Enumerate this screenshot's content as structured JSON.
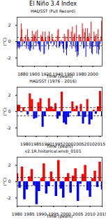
{
  "title": "El Niño 3.4 Index",
  "chart_data": [
    {
      "type": "area",
      "title": "HADSST (Full Record)",
      "x_label": "Time (years)",
      "y_label": "(°C)",
      "x": [
        1870,
        1871,
        1872,
        1873,
        1874,
        1875,
        1876,
        1877,
        1878,
        1879,
        1880,
        1881,
        1882,
        1883,
        1884,
        1885,
        1886,
        1887,
        1888,
        1889,
        1890,
        1891,
        1892,
        1893,
        1894,
        1895,
        1896,
        1897,
        1898,
        1899,
        1900,
        1901,
        1902,
        1903,
        1904,
        1905,
        1906,
        1907,
        1908,
        1909,
        1910,
        1911,
        1912,
        1913,
        1914,
        1915,
        1916,
        1917,
        1918,
        1919,
        1920,
        1921,
        1922,
        1923,
        1924,
        1925,
        1926,
        1927,
        1928,
        1929,
        1930,
        1931,
        1932,
        1933,
        1934,
        1935,
        1936,
        1937,
        1938,
        1939,
        1940,
        1941,
        1942,
        1943,
        1944,
        1945,
        1946,
        1947,
        1948,
        1949,
        1950,
        1951,
        1952,
        1953,
        1954,
        1955,
        1956,
        1957,
        1958,
        1959,
        1960,
        1961,
        1962,
        1963,
        1964,
        1965,
        1966,
        1967,
        1968,
        1969,
        1970,
        1971,
        1972,
        1973,
        1974,
        1975,
        1976,
        1977,
        1978,
        1979,
        1980,
        1981,
        1982,
        1983,
        1984,
        1985,
        1986,
        1987,
        1988,
        1989,
        1990,
        1991,
        1992,
        1993,
        1994,
        1995,
        1996,
        1997,
        1998,
        1999,
        2000,
        2001,
        2002,
        2003,
        2004,
        2005,
        2006,
        2007,
        2008,
        2009,
        2010,
        2011,
        2012,
        2013,
        2014,
        2015,
        2016
      ],
      "values": [
        -1.0,
        -0.3,
        -0.8,
        -0.5,
        -0.9,
        -0.7,
        0.4,
        2.2,
        1.5,
        -0.6,
        0.3,
        0.1,
        -0.3,
        -0.2,
        0.5,
        0.8,
        -0.9,
        -0.5,
        1.5,
        0.4,
        -1.0,
        0.3,
        -1.2,
        -1.1,
        -0.8,
        0.2,
        1.3,
        0.5,
        -1.0,
        0.9,
        0.7,
        -0.2,
        1.2,
        -0.6,
        0.3,
        1.4,
        -0.3,
        -0.4,
        -1.0,
        -1.1,
        -1.3,
        0.8,
        0.6,
        0.5,
        1.2,
        0.2,
        -1.6,
        -1.5,
        1.2,
        0.4,
        0.1,
        -0.4,
        -0.3,
        0.7,
        -1.0,
        1.2,
        0.6,
        -0.1,
        -0.3,
        -0.2,
        0.9,
        0.3,
        0.2,
        -0.5,
        -0.4,
        0.1,
        0.2,
        -0.1,
        -0.8,
        0.7,
        1.4,
        1.5,
        -0.8,
        -0.6,
        0.1,
        -0.4,
        0.2,
        -0.2,
        -0.3,
        -0.9,
        -1.4,
        0.9,
        0.1,
        0.6,
        -1.0,
        -1.7,
        -0.8,
        1.4,
        1.5,
        0.1,
        -0.1,
        0.0,
        -0.4,
        1.2,
        -0.9,
        1.8,
        0.4,
        -0.5,
        0.8,
        1.0,
        -0.8,
        -1.3,
        2.0,
        -1.9,
        -1.2,
        -1.7,
        0.8,
        0.8,
        -0.1,
        0.5,
        0.1,
        -0.4,
        2.2,
        1.5,
        -0.9,
        -0.8,
        1.1,
        1.6,
        -1.9,
        -0.6,
        0.4,
        1.6,
        0.6,
        0.3,
        1.0,
        -0.9,
        -0.5,
        2.4,
        -1.4,
        -1.6,
        -0.7,
        -0.2,
        1.2,
        0.3,
        0.7,
        -0.6,
        0.9,
        -1.5,
        -0.7,
        1.5,
        -1.6,
        -1.0,
        0.2,
        -0.3,
        0.6,
        2.5,
        -0.6
      ],
      "xlim": [
        1870,
        2016
      ],
      "ylim": [
        -3,
        3
      ],
      "xticks": [
        1880,
        1900,
        1920,
        1940,
        1960,
        1980,
        2000
      ],
      "yticks": [
        -2,
        0,
        2
      ],
      "colors": [
        "#ff0000",
        "#0000ff"
      ],
      "reference_lines": [
        -0.5,
        0.5
      ],
      "line_style": "dashed"
    },
    {
      "type": "area",
      "title": "HADSST (1976 - 2016)",
      "x_label": "Time (years)",
      "y_label": "(°C)",
      "x": [
        1976,
        1977,
        1978,
        1979,
        1980,
        1981,
        1982,
        1983,
        1984,
        1985,
        1986,
        1987,
        1988,
        1989,
        1990,
        1991,
        1992,
        1993,
        1994,
        1995,
        1996,
        1997,
        1998,
        1999,
        2000,
        2001,
        2002,
        2003,
        2004,
        2005,
        2006,
        2007,
        2008,
        2009,
        2010,
        2011,
        2012,
        2013,
        2014,
        2015,
        2016
      ],
      "values": [
        0.8,
        0.8,
        -0.1,
        0.5,
        0.1,
        -0.4,
        2.2,
        1.5,
        -0.9,
        -0.8,
        1.1,
        1.6,
        -1.9,
        -0.6,
        0.4,
        1.6,
        0.6,
        0.3,
        1.0,
        -0.9,
        -0.5,
        2.4,
        -1.4,
        -1.6,
        -0.7,
        -0.2,
        1.2,
        0.3,
        0.7,
        -0.6,
        0.9,
        -1.5,
        -0.7,
        1.5,
        -1.6,
        -1.0,
        0.2,
        -0.3,
        0.6,
        2.5,
        -0.6
      ],
      "xlim": [
        1976,
        2016
      ],
      "ylim": [
        -3,
        3
      ],
      "xticks": [
        1980,
        1985,
        1990,
        1995,
        2000,
        2005,
        2010,
        2015
      ],
      "yticks": [
        -2,
        0,
        2
      ],
      "colors": [
        "#ff0000",
        "#0000ff"
      ],
      "reference_lines": [
        -0.5,
        0.5
      ],
      "line_style": "dashed"
    },
    {
      "type": "area",
      "title": "v2.1R.historical.ensb_0101",
      "x_label": "Time (years)",
      "y_label": "(°C)",
      "x": [
        1980,
        1981,
        1982,
        1983,
        1984,
        1985,
        1986,
        1987,
        1988,
        1989,
        1990,
        1991,
        1992,
        1993,
        1994,
        1995,
        1996,
        1997,
        1998,
        1999,
        2000,
        2001,
        2002,
        2003,
        2004,
        2005,
        2006,
        2007,
        2008,
        2009,
        2010,
        2011,
        2012,
        2013,
        2014,
        2015
      ],
      "values": [
        1.0,
        -0.8,
        1.8,
        -2.2,
        -1.0,
        0.6,
        1.5,
        -0.5,
        -2.8,
        -1.2,
        0.4,
        2.2,
        -1.5,
        -0.6,
        1.2,
        0.3,
        -1.8,
        2.6,
        -0.9,
        -2.0,
        0.5,
        1.0,
        -1.4,
        0.7,
        1.6,
        -2.4,
        -0.3,
        0.9,
        2.0,
        -1.1,
        -1.9,
        0.4,
        1.3,
        -0.7,
        2.4,
        -1.0
      ],
      "xlim": [
        1980,
        2015
      ],
      "ylim": [
        -3,
        3
      ],
      "xticks": [
        1980,
        1985,
        1990,
        1995,
        2000,
        2005,
        2010,
        2015
      ],
      "yticks": [
        -2,
        0,
        2
      ],
      "colors": [
        "#ff0000",
        "#0000ff"
      ],
      "reference_lines": [
        -0.5,
        0.5
      ],
      "line_style": "dashed"
    }
  ]
}
